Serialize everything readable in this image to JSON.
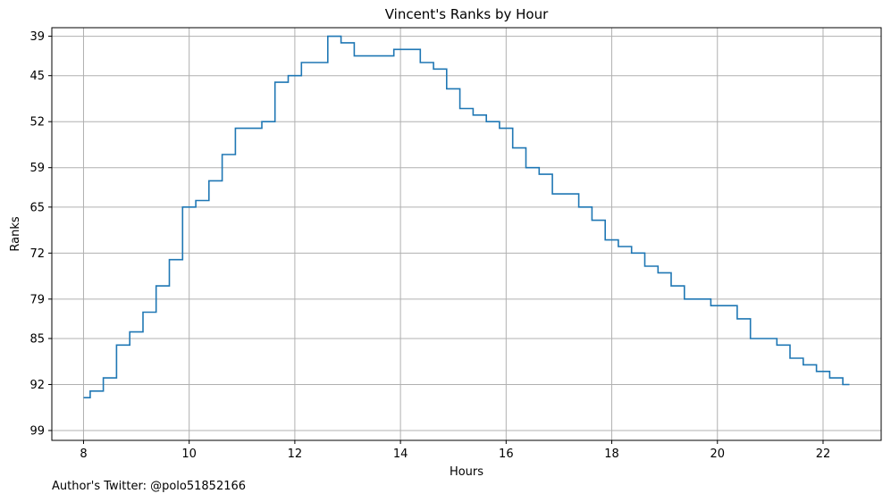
{
  "chart_data": {
    "type": "line",
    "title": "Vincent's Ranks by Hour",
    "xlabel": "Hours",
    "ylabel": "Ranks",
    "step": "pre",
    "inverted_y": true,
    "grid": true,
    "line_color": "#1f77b4",
    "xlim": [
      7.4,
      23.1
    ],
    "ylim": [
      100.5,
      37.7
    ],
    "xticks": [
      8,
      10,
      12,
      14,
      16,
      18,
      20,
      22
    ],
    "yticks": [
      39,
      45,
      52,
      59,
      65,
      72,
      79,
      85,
      92,
      99
    ],
    "series": [
      {
        "x": [
          8.0,
          8.125,
          8.375,
          8.625,
          8.875,
          9.125,
          9.375,
          9.625,
          9.875,
          10.125,
          10.375,
          10.625,
          10.875,
          11.125,
          11.375,
          11.625,
          11.875,
          12.125,
          12.375,
          12.625,
          12.875,
          13.125,
          13.375,
          13.625,
          13.875,
          14.125,
          14.375,
          14.625,
          14.875,
          15.125,
          15.375,
          15.625,
          15.875,
          16.125,
          16.375,
          16.625,
          16.875,
          17.125,
          17.375,
          17.625,
          17.875,
          18.125,
          18.375,
          18.625,
          18.875,
          19.125,
          19.375,
          19.625,
          19.875,
          20.125,
          20.375,
          20.625,
          20.875,
          21.125,
          21.375,
          21.625,
          21.875,
          22.125,
          22.375,
          22.5
        ],
        "y": [
          94,
          93,
          91,
          86,
          84,
          81,
          77,
          73,
          65,
          64,
          61,
          57,
          53,
          53,
          52,
          46,
          45,
          43,
          43,
          39,
          40,
          42,
          42,
          42,
          41,
          41,
          43,
          44,
          47,
          50,
          51,
          52,
          53,
          56,
          59,
          60,
          63,
          63,
          65,
          67,
          70,
          71,
          72,
          74,
          75,
          77,
          79,
          79,
          80,
          80,
          82,
          85,
          85,
          86,
          88,
          89,
          90,
          91,
          92,
          92
        ]
      }
    ],
    "annotations": [
      "Author's Twitter: @polo51852166"
    ]
  }
}
